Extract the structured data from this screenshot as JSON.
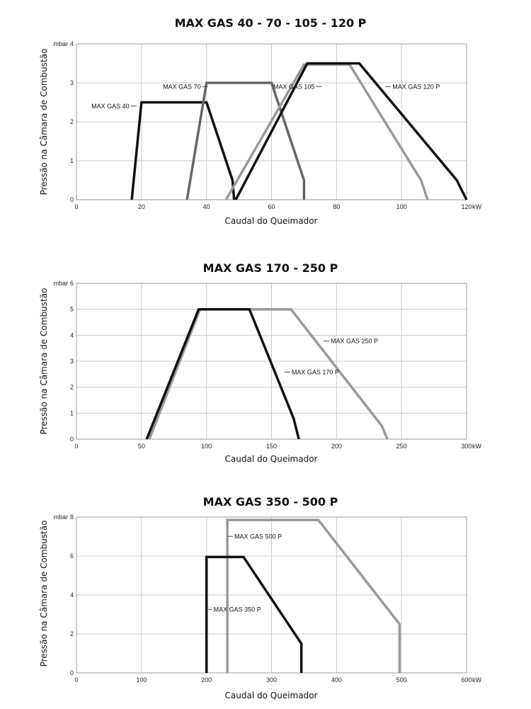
{
  "chart_data": [
    {
      "type": "line",
      "title": "MAX GAS 40 - 70 - 105 - 120 P",
      "xlabel": "Caudal do Queimador",
      "ylabel": "Pressão na Câmara de Combustão",
      "x_unit": "kW",
      "y_unit": "mbar",
      "xlim": [
        0,
        120
      ],
      "ylim": [
        0,
        4
      ],
      "x_ticks": [
        0,
        20,
        40,
        60,
        80,
        100,
        120
      ],
      "y_ticks": [
        0,
        1,
        2,
        3,
        4
      ],
      "grid": true,
      "series": [
        {
          "name": "MAX GAS 40",
          "color": "#111111",
          "points": [
            [
              17,
              0
            ],
            [
              20,
              2.5
            ],
            [
              40,
              2.5
            ],
            [
              48,
              0.5
            ],
            [
              48.5,
              0
            ]
          ],
          "label_anchor": [
            18,
            2.35
          ]
        },
        {
          "name": "MAX GAS 70",
          "color": "#666666",
          "points": [
            [
              34,
              0
            ],
            [
              40,
              3
            ],
            [
              60,
              3
            ],
            [
              70,
              0.5
            ],
            [
              70,
              0
            ]
          ],
          "label_anchor": [
            40,
            2.85
          ]
        },
        {
          "name": "MAX GAS 105",
          "color": "#999999",
          "points": [
            [
              46,
              0
            ],
            [
              70,
              3.47
            ],
            [
              84,
              3.47
            ],
            [
              106,
              0.5
            ],
            [
              108,
              0
            ]
          ],
          "label_anchor": [
            75,
            2.85
          ]
        },
        {
          "name": "MAX GAS 120 P",
          "color": "#111111",
          "points": [
            [
              49,
              0
            ],
            [
              71,
              3.5
            ],
            [
              87,
              3.5
            ],
            [
              117,
              0.5
            ],
            [
              120,
              0
            ]
          ],
          "label_anchor": [
            95,
            2.85
          ]
        }
      ]
    },
    {
      "type": "line",
      "title": "MAX GAS 170 - 250 P",
      "xlabel": "Caudal do Queimador",
      "ylabel": "Pressão na Câmara de Combustão",
      "x_unit": "kW",
      "y_unit": "mbar",
      "xlim": [
        0,
        300
      ],
      "ylim": [
        0,
        6
      ],
      "x_ticks": [
        0,
        50,
        100,
        150,
        200,
        250,
        300
      ],
      "y_ticks": [
        0,
        1,
        2,
        3,
        4,
        5,
        6
      ],
      "grid": true,
      "series": [
        {
          "name": "MAX GAS 250 P",
          "color": "#999999",
          "points": [
            [
              56,
              0
            ],
            [
              95,
              5
            ],
            [
              165,
              5
            ],
            [
              235,
              0.5
            ],
            [
              239,
              0
            ]
          ],
          "label_anchor": [
            190,
            3.7
          ]
        },
        {
          "name": "MAX GAS 170 P",
          "color": "#111111",
          "points": [
            [
              54,
              0
            ],
            [
              94,
              5
            ],
            [
              133,
              5
            ],
            [
              167,
              0.8
            ],
            [
              171,
              0
            ]
          ],
          "label_anchor": [
            160,
            2.5
          ]
        }
      ]
    },
    {
      "type": "line",
      "title": "MAX GAS 350 - 500 P",
      "xlabel": "Caudal do Queimador",
      "ylabel": "Pressão na Câmara de Combustão",
      "x_unit": "kW",
      "y_unit": "mbar",
      "xlim": [
        0,
        600
      ],
      "ylim": [
        0,
        8
      ],
      "x_ticks": [
        0,
        100,
        200,
        300,
        400,
        500,
        600
      ],
      "y_ticks": [
        0,
        2,
        4,
        6,
        8
      ],
      "grid": true,
      "series": [
        {
          "name": "MAX GAS 500 P",
          "color": "#999999",
          "points": [
            [
              232,
              0
            ],
            [
              232,
              7.85
            ],
            [
              372,
              7.85
            ],
            [
              497,
              2.5
            ],
            [
              497,
              0
            ]
          ],
          "label_anchor": [
            232,
            6.9
          ]
        },
        {
          "name": "MAX GAS 350 P",
          "color": "#111111",
          "points": [
            [
              200,
              0
            ],
            [
              200,
              5.95
            ],
            [
              257,
              5.95
            ],
            [
              346,
              1.5
            ],
            [
              346,
              0
            ]
          ],
          "label_anchor": [
            200,
            3.15
          ]
        }
      ]
    }
  ]
}
